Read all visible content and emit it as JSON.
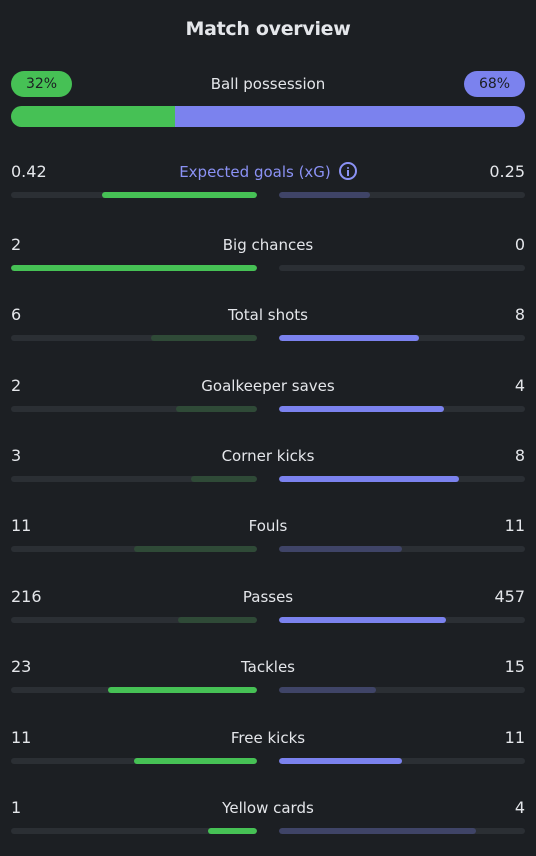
{
  "title": "Match overview",
  "possession": {
    "label": "Ball possession",
    "home_value": "32%",
    "away_value": "68%",
    "home_fraction": 0.32,
    "away_fraction": 0.68,
    "home_color": "#46c155",
    "away_color": "#7b82ee"
  },
  "stats": [
    {
      "label": "Expected goals (xG)",
      "home": "0.42",
      "away": "0.25",
      "home_fill": 0.63,
      "away_fill": 0.37,
      "home_strong": true,
      "away_strong": false,
      "accent": true,
      "icon": "info-icon"
    },
    {
      "label": "Big chances",
      "home": "2",
      "away": "0",
      "home_fill": 1.0,
      "away_fill": 0.0,
      "home_strong": true,
      "away_strong": false
    },
    {
      "label": "Total shots",
      "home": "6",
      "away": "8",
      "home_fill": 0.43,
      "away_fill": 0.57,
      "home_strong": false,
      "away_strong": true
    },
    {
      "label": "Goalkeeper saves",
      "home": "2",
      "away": "4",
      "home_fill": 0.33,
      "away_fill": 0.67,
      "home_strong": false,
      "away_strong": true
    },
    {
      "label": "Corner kicks",
      "home": "3",
      "away": "8",
      "home_fill": 0.27,
      "away_fill": 0.73,
      "home_strong": false,
      "away_strong": true
    },
    {
      "label": "Fouls",
      "home": "11",
      "away": "11",
      "home_fill": 0.5,
      "away_fill": 0.5,
      "home_strong": false,
      "away_strong": false
    },
    {
      "label": "Passes",
      "home": "216",
      "away": "457",
      "home_fill": 0.32,
      "away_fill": 0.68,
      "home_strong": false,
      "away_strong": true
    },
    {
      "label": "Tackles",
      "home": "23",
      "away": "15",
      "home_fill": 0.605,
      "away_fill": 0.395,
      "home_strong": true,
      "away_strong": false
    },
    {
      "label": "Free kicks",
      "home": "11",
      "away": "11",
      "home_fill": 0.5,
      "away_fill": 0.5,
      "home_strong": true,
      "away_strong": true
    },
    {
      "label": "Yellow cards",
      "home": "1",
      "away": "4",
      "home_fill": 0.2,
      "away_fill": 0.8,
      "home_strong": true,
      "away_strong": false
    }
  ]
}
